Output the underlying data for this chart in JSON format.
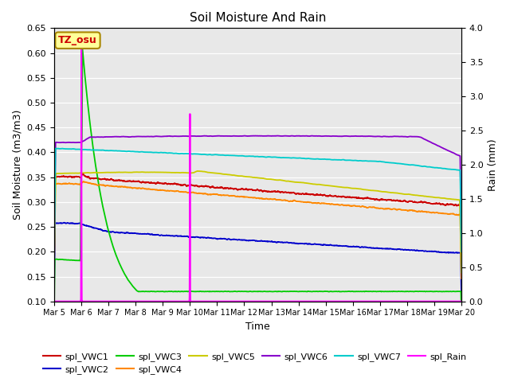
{
  "title": "Soil Moisture And Rain",
  "ylabel_left": "Soil Moisture (m3/m3)",
  "ylabel_right": "Rain (mm)",
  "xlabel": "Time",
  "ylim_left": [
    0.1,
    0.65
  ],
  "ylim_right": [
    0.0,
    4.0
  ],
  "background_color": "#e8e8e8",
  "annotation_label": "TZ_osu",
  "annotation_color": "#cc0000",
  "annotation_bg": "#ffff99",
  "annotation_border": "#aa8800",
  "series": {
    "spl_VWC1": {
      "color": "#cc0000",
      "lw": 1.3
    },
    "spl_VWC2": {
      "color": "#0000cc",
      "lw": 1.3
    },
    "spl_VWC3": {
      "color": "#00cc00",
      "lw": 1.3
    },
    "spl_VWC4": {
      "color": "#ff8800",
      "lw": 1.3
    },
    "spl_VWC5": {
      "color": "#cccc00",
      "lw": 1.3
    },
    "spl_VWC6": {
      "color": "#8800cc",
      "lw": 1.3
    },
    "spl_VWC7": {
      "color": "#00cccc",
      "lw": 1.3
    },
    "spl_Rain": {
      "color": "#ff00ff",
      "lw": 1.5
    }
  },
  "tick_labels": [
    "Mar 5",
    "Mar 6",
    "Mar 7",
    "Mar 8",
    "Mar 9",
    "Mar 10",
    "Mar 11",
    "Mar 12",
    "Mar 13",
    "Mar 14",
    "Mar 15",
    "Mar 16",
    "Mar 17",
    "Mar 18",
    "Mar 19",
    "Mar 20"
  ]
}
